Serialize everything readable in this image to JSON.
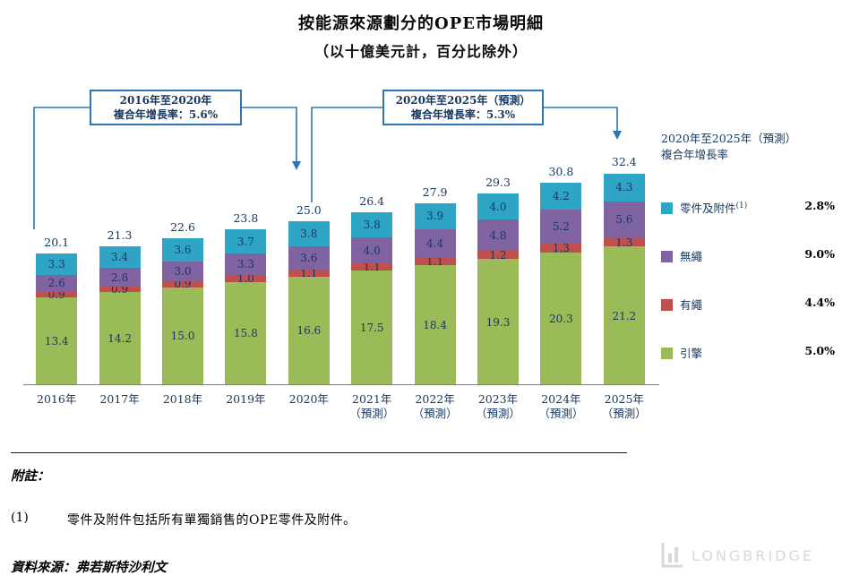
{
  "title": "按能源來源劃分的OPE市場明細",
  "subtitle": "（以十億美元計，百分比除外）",
  "annotations": {
    "box1": {
      "line1": "2016年至2020年",
      "line2": "複合年增長率：5.6%"
    },
    "box2": {
      "line1": "2020年至2025年（預測）",
      "line2": "複合年增長率：5.3%"
    }
  },
  "legend": {
    "title_line1": "2020年至2025年（預測）",
    "title_line2": "複合年增長率",
    "items": [
      {
        "label": "零件及附件",
        "sup": "(1)",
        "cagr": "2.8%",
        "color": "#2FA5C6"
      },
      {
        "label": "無繩",
        "sup": "",
        "cagr": "9.0%",
        "color": "#8064A2"
      },
      {
        "label": "有繩",
        "sup": "",
        "cagr": "4.4%",
        "color": "#C0504D"
      },
      {
        "label": "引擎",
        "sup": "",
        "cagr": "5.0%",
        "color": "#9BBB59"
      }
    ]
  },
  "chart_data": {
    "type": "bar",
    "stacked": true,
    "title": "按能源來源劃分的OPE市場明細",
    "subtitle": "（以十億美元計，百分比除外）",
    "ylim": [
      0,
      34
    ],
    "grid": false,
    "legend_position": "right",
    "categories": [
      {
        "label": "2016年",
        "sub": ""
      },
      {
        "label": "2017年",
        "sub": ""
      },
      {
        "label": "2018年",
        "sub": ""
      },
      {
        "label": "2019年",
        "sub": ""
      },
      {
        "label": "2020年",
        "sub": ""
      },
      {
        "label": "2021年",
        "sub": "（預測）"
      },
      {
        "label": "2022年",
        "sub": "（預測）"
      },
      {
        "label": "2023年",
        "sub": "（預測）"
      },
      {
        "label": "2024年",
        "sub": "（預測）"
      },
      {
        "label": "2025年",
        "sub": "（預測）"
      }
    ],
    "series": [
      {
        "name": "引擎",
        "color": "#9BBB59",
        "values": [
          13.4,
          14.2,
          15.0,
          15.8,
          16.6,
          17.5,
          18.4,
          19.3,
          20.3,
          21.2
        ]
      },
      {
        "name": "有繩",
        "color": "#C0504D",
        "values": [
          0.9,
          0.9,
          0.9,
          1.0,
          1.1,
          1.1,
          1.1,
          1.2,
          1.3,
          1.3
        ]
      },
      {
        "name": "無繩",
        "color": "#8064A2",
        "values": [
          2.6,
          2.8,
          3.0,
          3.3,
          3.6,
          4.0,
          4.4,
          4.8,
          5.2,
          5.6
        ]
      },
      {
        "name": "零件及附件",
        "color": "#2FA5C6",
        "values": [
          3.3,
          3.4,
          3.6,
          3.7,
          3.8,
          3.8,
          3.9,
          4.0,
          4.2,
          4.3
        ]
      }
    ],
    "totals": [
      20.1,
      21.3,
      22.6,
      23.8,
      25.0,
      26.4,
      27.9,
      29.3,
      30.8,
      32.4
    ]
  },
  "footer": {
    "note_title": "附註：",
    "footnote_num": "(1)",
    "footnote_text": "零件及附件包括所有單獨銷售的OPE零件及附件。",
    "source": "資料來源：弗若斯特沙利文"
  },
  "watermark": "LONGBRIDGE",
  "colors": {
    "annotation_blue": "#2E75B6",
    "label_navy": "#17375E"
  }
}
